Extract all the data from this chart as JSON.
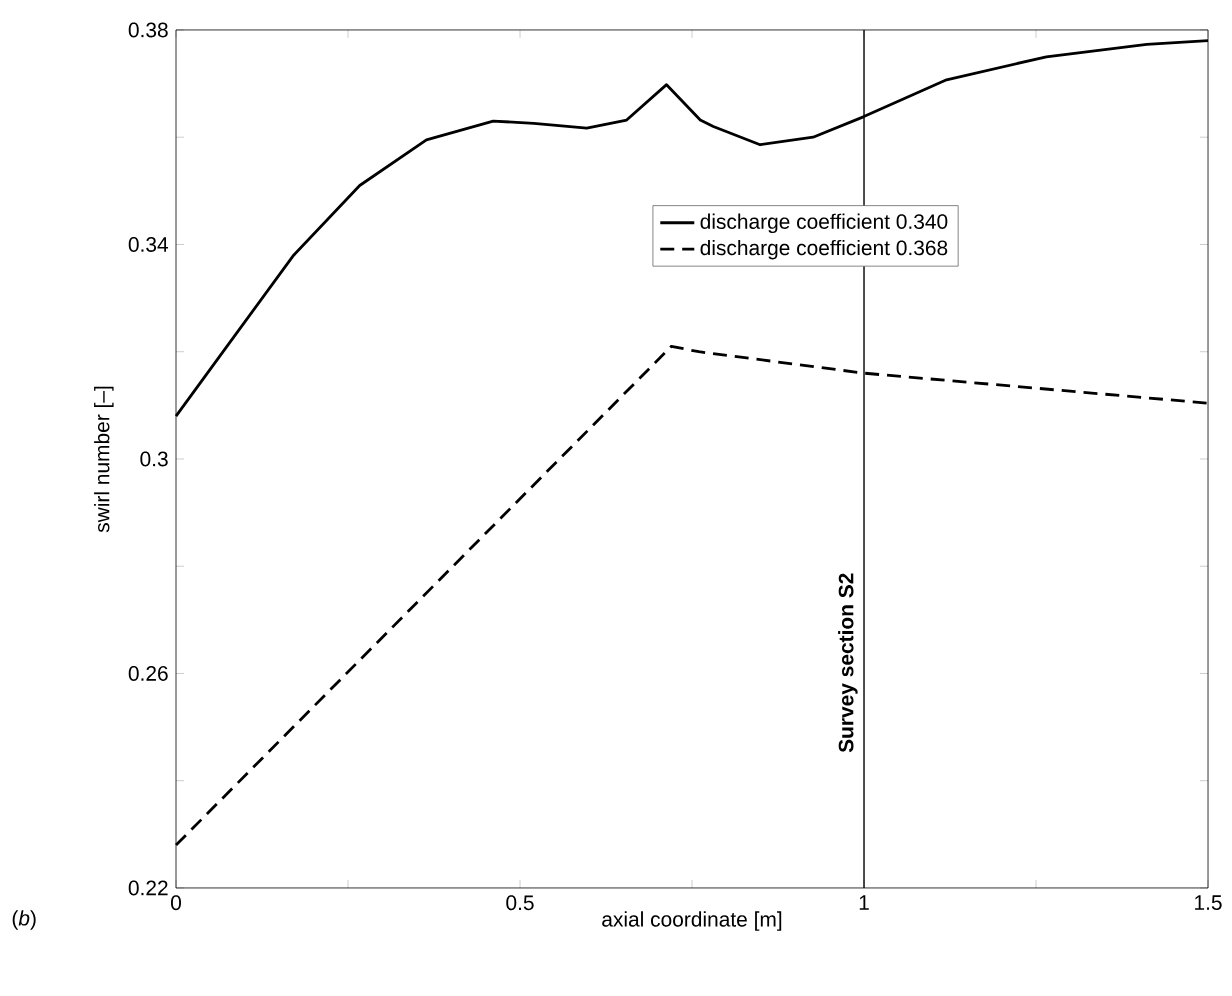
{
  "chart_data": {
    "type": "line",
    "xlabel": "axial coordinate [m]",
    "ylabel": "swirl number [–]",
    "xlim": [
      0,
      1.5
    ],
    "ylim": [
      0.22,
      0.38
    ],
    "xticks": [
      0,
      {
        "value": 0.25,
        "label": null
      },
      0.5,
      {
        "value": 0.75,
        "label": null
      },
      1,
      {
        "value": 1.25,
        "label": null
      },
      1.5
    ],
    "yticks": [
      0.22,
      {
        "value": 0.24,
        "label": null
      },
      0.26,
      {
        "value": 0.28,
        "label": null
      },
      0.3,
      {
        "value": 0.32,
        "label": null
      },
      0.34,
      {
        "value": 0.36,
        "label": null
      },
      0.38
    ],
    "series": [
      {
        "name": "discharge coefficient 0.340",
        "color": "#000000",
        "line_style": "solid",
        "x": [
          0,
          0.074,
          0.171,
          0.267,
          0.364,
          0.461,
          0.52,
          0.597,
          0.655,
          0.713,
          0.762,
          0.781,
          0.849,
          0.926,
          0.999,
          1.12,
          1.265,
          1.411,
          1.5
        ],
        "values": [
          0.308,
          0.321,
          0.338,
          0.351,
          0.3595,
          0.363,
          0.3626,
          0.3617,
          0.3632,
          0.3698,
          0.3632,
          0.362,
          0.3586,
          0.36,
          0.3638,
          0.3707,
          0.375,
          0.3773,
          0.378
        ]
      },
      {
        "name": "discharge coefficient 0.368",
        "color": "#000000",
        "line_style": "dashed",
        "x": [
          0,
          0.72,
          0.76,
          1.0,
          1.5
        ],
        "values": [
          0.228,
          0.321,
          0.32,
          0.316,
          0.3104
        ]
      }
    ],
    "ref_lines": [
      {
        "axis": "x",
        "value": 1,
        "label": "**Survey section S2**",
        "color": "#000000"
      }
    ],
    "annotations": [
      "(*b*)"
    ],
    "legend": "right",
    "grid": false,
    "marker": "none"
  }
}
